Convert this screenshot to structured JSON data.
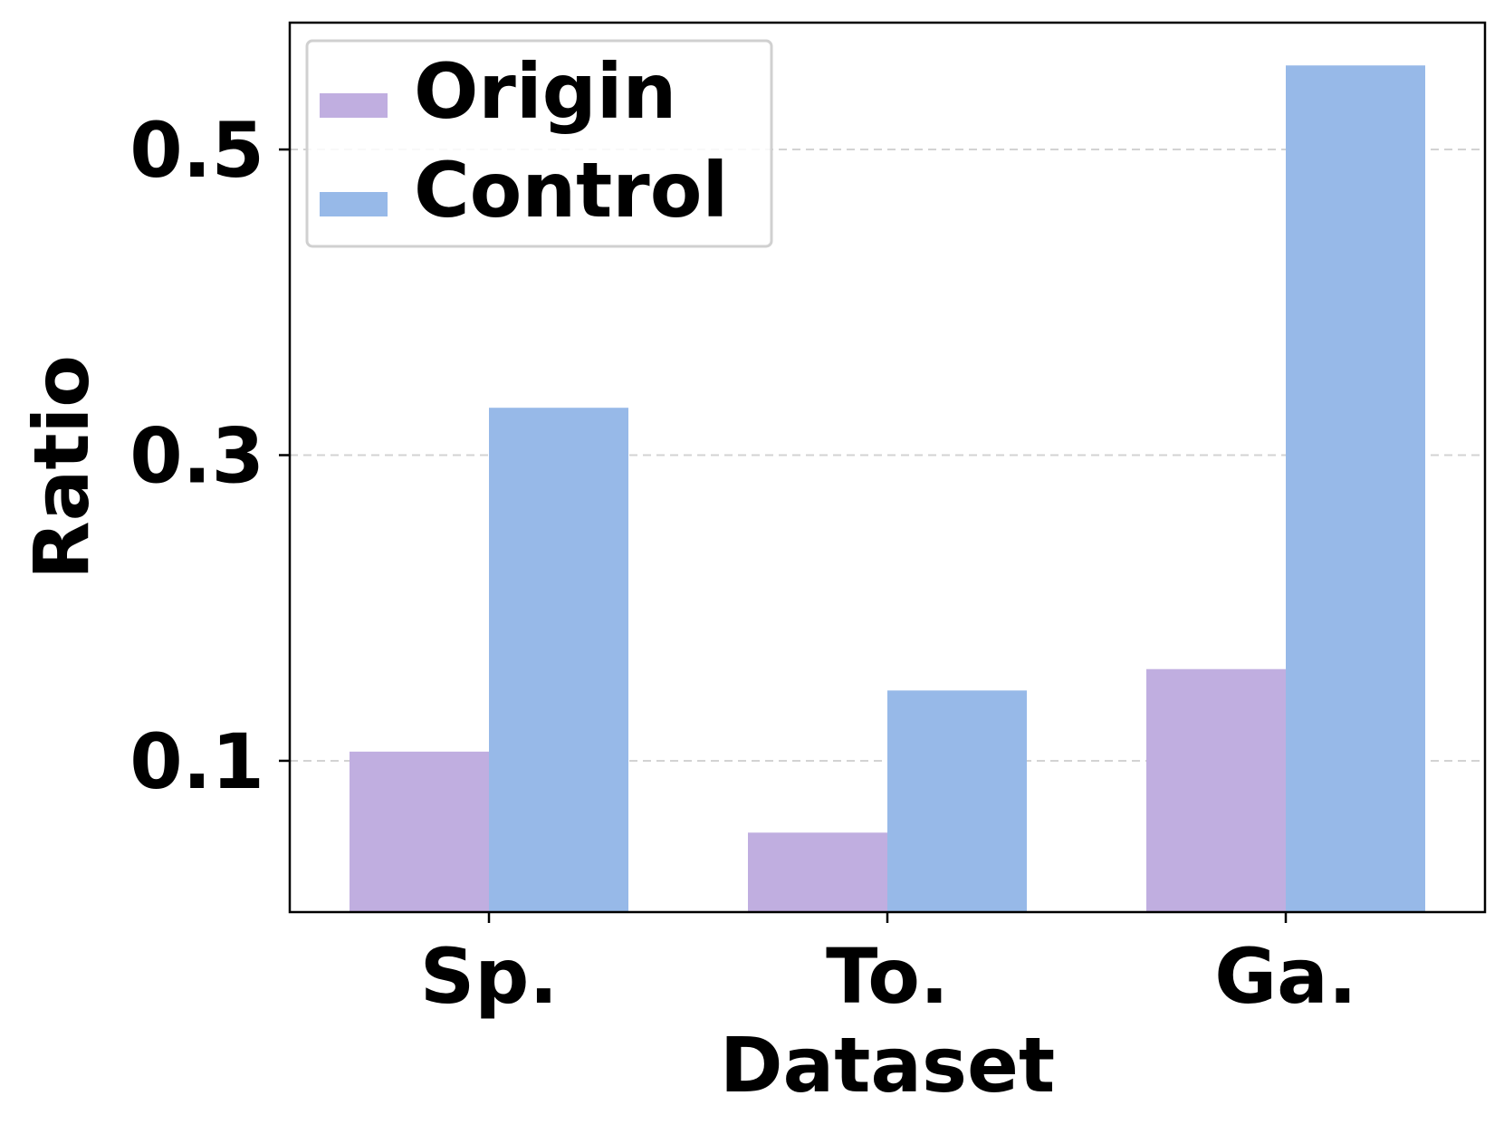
{
  "chart_data": {
    "type": "bar",
    "title": "",
    "xlabel": "Dataset",
    "ylabel": "Ratio",
    "categories": [
      "Sp.",
      "To.",
      "Ga."
    ],
    "series": [
      {
        "name": "Origin",
        "values": [
          0.106,
          0.053,
          0.16
        ],
        "color": "#c0aee0"
      },
      {
        "name": "Control",
        "values": [
          0.331,
          0.146,
          0.555
        ],
        "color": "#97b9e8"
      }
    ],
    "ylim": [
      0.001,
      0.583
    ],
    "yticks": [
      0.1,
      0.3,
      0.5
    ],
    "ytick_labels": [
      "0.1",
      "0.3",
      "0.5"
    ],
    "grid": "y-dashed",
    "legend_position": "top-left"
  }
}
